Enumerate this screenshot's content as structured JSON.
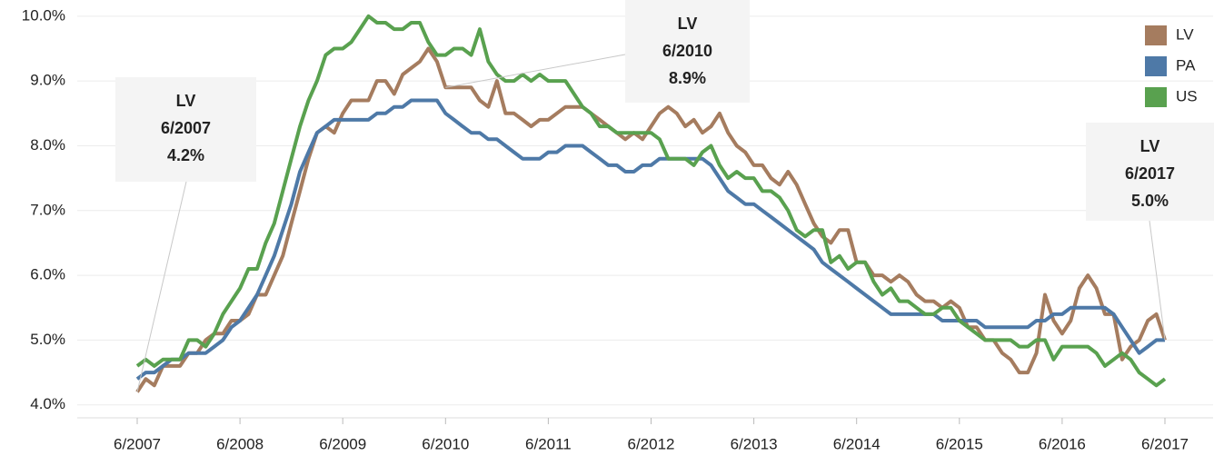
{
  "chart_data": {
    "type": "line",
    "categories": [
      "6/2007",
      null,
      null,
      null,
      null,
      null,
      null,
      null,
      null,
      null,
      null,
      null,
      "6/2008",
      null,
      null,
      null,
      null,
      null,
      null,
      null,
      null,
      null,
      null,
      null,
      "6/2009",
      null,
      null,
      null,
      null,
      null,
      null,
      null,
      null,
      null,
      null,
      null,
      "6/2010",
      null,
      null,
      null,
      null,
      null,
      null,
      null,
      null,
      null,
      null,
      null,
      "6/2011",
      null,
      null,
      null,
      null,
      null,
      null,
      null,
      null,
      null,
      null,
      null,
      "6/2012",
      null,
      null,
      null,
      null,
      null,
      null,
      null,
      null,
      null,
      null,
      null,
      "6/2013",
      null,
      null,
      null,
      null,
      null,
      null,
      null,
      null,
      null,
      null,
      null,
      "6/2014",
      null,
      null,
      null,
      null,
      null,
      null,
      null,
      null,
      null,
      null,
      null,
      "6/2015",
      null,
      null,
      null,
      null,
      null,
      null,
      null,
      null,
      null,
      null,
      null,
      "6/2016",
      null,
      null,
      null,
      null,
      null,
      null,
      null,
      null,
      null,
      null,
      null,
      "6/2017"
    ],
    "series": [
      {
        "name": "LV",
        "color": "#a57c5f",
        "values": [
          4.2,
          4.4,
          4.3,
          4.6,
          4.6,
          4.6,
          4.8,
          4.8,
          5.0,
          5.1,
          5.1,
          5.3,
          5.3,
          5.4,
          5.7,
          5.7,
          6.0,
          6.3,
          6.8,
          7.3,
          7.8,
          8.2,
          8.3,
          8.2,
          8.5,
          8.7,
          8.7,
          8.7,
          9.0,
          9.0,
          8.8,
          9.1,
          9.2,
          9.3,
          9.5,
          9.3,
          8.9,
          8.9,
          8.9,
          8.9,
          8.7,
          8.6,
          9.0,
          8.5,
          8.5,
          8.4,
          8.3,
          8.4,
          8.4,
          8.5,
          8.6,
          8.6,
          8.6,
          8.5,
          8.4,
          8.3,
          8.2,
          8.1,
          8.2,
          8.1,
          8.3,
          8.5,
          8.6,
          8.5,
          8.3,
          8.4,
          8.2,
          8.3,
          8.5,
          8.2,
          8.0,
          7.9,
          7.7,
          7.7,
          7.5,
          7.4,
          7.6,
          7.4,
          7.1,
          6.8,
          6.6,
          6.5,
          6.7,
          6.7,
          6.2,
          6.2,
          6.0,
          6.0,
          5.9,
          6.0,
          5.9,
          5.7,
          5.6,
          5.6,
          5.5,
          5.6,
          5.5,
          5.2,
          5.2,
          5.0,
          5.0,
          4.8,
          4.7,
          4.5,
          4.5,
          4.8,
          5.7,
          5.3,
          5.1,
          5.3,
          5.8,
          6.0,
          5.8,
          5.4,
          5.4,
          4.7,
          4.9,
          5.0,
          5.3,
          5.4,
          5.0
        ]
      },
      {
        "name": "PA",
        "color": "#4e79a7",
        "values": [
          4.4,
          4.5,
          4.5,
          4.6,
          4.7,
          4.7,
          4.8,
          4.8,
          4.8,
          4.9,
          5.0,
          5.2,
          5.3,
          5.5,
          5.7,
          6.0,
          6.3,
          6.7,
          7.1,
          7.6,
          7.9,
          8.2,
          8.3,
          8.4,
          8.4,
          8.4,
          8.4,
          8.4,
          8.5,
          8.5,
          8.6,
          8.6,
          8.7,
          8.7,
          8.7,
          8.7,
          8.5,
          8.4,
          8.3,
          8.2,
          8.2,
          8.1,
          8.1,
          8.0,
          7.9,
          7.8,
          7.8,
          7.8,
          7.9,
          7.9,
          8.0,
          8.0,
          8.0,
          7.9,
          7.8,
          7.7,
          7.7,
          7.6,
          7.6,
          7.7,
          7.7,
          7.8,
          7.8,
          7.8,
          7.8,
          7.8,
          7.8,
          7.7,
          7.5,
          7.3,
          7.2,
          7.1,
          7.1,
          7.0,
          6.9,
          6.8,
          6.7,
          6.6,
          6.5,
          6.4,
          6.2,
          6.1,
          6.0,
          5.9,
          5.8,
          5.7,
          5.6,
          5.5,
          5.4,
          5.4,
          5.4,
          5.4,
          5.4,
          5.4,
          5.3,
          5.3,
          5.3,
          5.3,
          5.3,
          5.2,
          5.2,
          5.2,
          5.2,
          5.2,
          5.2,
          5.3,
          5.3,
          5.4,
          5.4,
          5.5,
          5.5,
          5.5,
          5.5,
          5.5,
          5.4,
          5.2,
          5.0,
          4.8,
          4.9,
          5.0,
          5.0
        ]
      },
      {
        "name": "US",
        "color": "#59a14f",
        "values": [
          4.6,
          4.7,
          4.6,
          4.7,
          4.7,
          4.7,
          5.0,
          5.0,
          4.9,
          5.1,
          5.4,
          5.6,
          5.8,
          6.1,
          6.1,
          6.5,
          6.8,
          7.3,
          7.8,
          8.3,
          8.7,
          9.0,
          9.4,
          9.5,
          9.5,
          9.6,
          9.8,
          10.0,
          9.9,
          9.9,
          9.8,
          9.8,
          9.9,
          9.9,
          9.6,
          9.4,
          9.4,
          9.5,
          9.5,
          9.4,
          9.8,
          9.3,
          9.1,
          9.0,
          9.0,
          9.1,
          9.0,
          9.1,
          9.0,
          9.0,
          9.0,
          8.8,
          8.6,
          8.5,
          8.3,
          8.3,
          8.2,
          8.2,
          8.2,
          8.2,
          8.2,
          8.1,
          7.8,
          7.8,
          7.8,
          7.7,
          7.9,
          8.0,
          7.7,
          7.5,
          7.6,
          7.5,
          7.5,
          7.3,
          7.3,
          7.2,
          7.0,
          6.7,
          6.6,
          6.7,
          6.7,
          6.2,
          6.3,
          6.1,
          6.2,
          6.2,
          5.9,
          5.7,
          5.8,
          5.6,
          5.6,
          5.5,
          5.4,
          5.4,
          5.5,
          5.5,
          5.3,
          5.2,
          5.1,
          5.0,
          5.0,
          5.0,
          5.0,
          4.9,
          4.9,
          5.0,
          5.0,
          4.7,
          4.9,
          4.9,
          4.9,
          4.9,
          4.8,
          4.6,
          4.7,
          4.8,
          4.7,
          4.5,
          4.4,
          4.3,
          4.4
        ]
      }
    ],
    "ylim": [
      3.8,
      10.25
    ],
    "yticks": [
      {
        "value": 4,
        "label": "4.0%"
      },
      {
        "value": 5,
        "label": "5.0%"
      },
      {
        "value": 6,
        "label": "6.0%"
      },
      {
        "value": 7,
        "label": "7.0%"
      },
      {
        "value": 8,
        "label": "8.0%"
      },
      {
        "value": 9,
        "label": "9.0%"
      },
      {
        "value": 10,
        "label": "10.0%"
      }
    ],
    "grid": true,
    "legend": "top-right",
    "annotations": [
      {
        "lines": [
          "LV",
          "6/2007",
          "4.2%"
        ]
      },
      {
        "lines": [
          "LV",
          "6/2010",
          "8.9%"
        ]
      },
      {
        "lines": [
          "LV",
          "6/2017",
          "5.0%"
        ]
      }
    ]
  }
}
